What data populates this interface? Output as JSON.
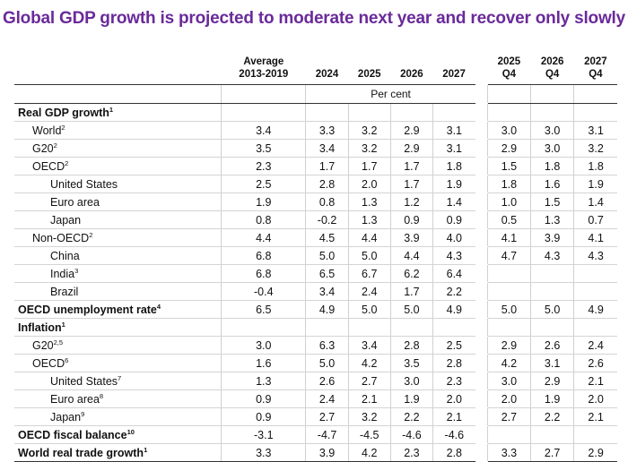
{
  "title": "Global GDP growth is projected to moderate next year and recover only slowly",
  "headers": {
    "avg_line1": "Average",
    "avg_line2": "2013-2019",
    "y2024": "2024",
    "y2025": "2025",
    "y2026": "2026",
    "y2027": "2027",
    "q2025_line1": "2025",
    "q2025_line2": "Q4",
    "q2026_line1": "2026",
    "q2026_line2": "Q4",
    "q2027_line1": "2027",
    "q2027_line2": "Q4",
    "unit": "Per cent"
  },
  "rows": [
    {
      "label": "Real GDP growth",
      "sup": "1",
      "values": [
        "",
        "",
        "",
        "",
        "",
        "",
        "",
        ""
      ]
    },
    {
      "label": "World",
      "sup": "2",
      "values": [
        "3.4",
        "3.3",
        "3.2",
        "2.9",
        "3.1",
        "3.0",
        "3.0",
        "3.1"
      ]
    },
    {
      "label": "G20",
      "sup": "2",
      "values": [
        "3.5",
        "3.4",
        "3.2",
        "2.9",
        "3.1",
        "2.9",
        "3.0",
        "3.2"
      ]
    },
    {
      "label": "OECD",
      "sup": "2",
      "values": [
        "2.3",
        "1.7",
        "1.7",
        "1.7",
        "1.8",
        "1.5",
        "1.8",
        "1.8"
      ]
    },
    {
      "label": "United States",
      "sup": "",
      "values": [
        "2.5",
        "2.8",
        "2.0",
        "1.7",
        "1.9",
        "1.8",
        "1.6",
        "1.9"
      ]
    },
    {
      "label": "Euro area",
      "sup": "",
      "values": [
        "1.9",
        "0.8",
        "1.3",
        "1.2",
        "1.4",
        "1.0",
        "1.5",
        "1.4"
      ]
    },
    {
      "label": "Japan",
      "sup": "",
      "values": [
        "0.8",
        "-0.2",
        "1.3",
        "0.9",
        "0.9",
        "0.5",
        "1.3",
        "0.7"
      ]
    },
    {
      "label": "Non-OECD",
      "sup": "2",
      "values": [
        "4.4",
        "4.5",
        "4.4",
        "3.9",
        "4.0",
        "4.1",
        "3.9",
        "4.1"
      ]
    },
    {
      "label": "China",
      "sup": "",
      "values": [
        "6.8",
        "5.0",
        "5.0",
        "4.4",
        "4.3",
        "4.7",
        "4.3",
        "4.3"
      ]
    },
    {
      "label": "India",
      "sup": "3",
      "values": [
        "6.8",
        "6.5",
        "6.7",
        "6.2",
        "6.4",
        "",
        "",
        ""
      ]
    },
    {
      "label": "Brazil",
      "sup": "",
      "values": [
        "-0.4",
        "3.4",
        "2.4",
        "1.7",
        "2.2",
        "",
        "",
        ""
      ]
    },
    {
      "label": "OECD unemployment rate",
      "sup": "4",
      "values": [
        "6.5",
        "4.9",
        "5.0",
        "5.0",
        "4.9",
        "5.0",
        "5.0",
        "4.9"
      ]
    },
    {
      "label": "Inflation",
      "sup": "1",
      "values": [
        "",
        "",
        "",
        "",
        "",
        "",
        "",
        ""
      ]
    },
    {
      "label": "G20",
      "sup": "2,5",
      "values": [
        "3.0",
        "6.3",
        "3.4",
        "2.8",
        "2.5",
        "2.9",
        "2.6",
        "2.4"
      ]
    },
    {
      "label": "OECD",
      "sup": "6",
      "values": [
        "1.6",
        "5.0",
        "4.2",
        "3.5",
        "2.8",
        "4.2",
        "3.1",
        "2.6"
      ]
    },
    {
      "label": "United States",
      "sup": "7",
      "values": [
        "1.3",
        "2.6",
        "2.7",
        "3.0",
        "2.3",
        "3.0",
        "2.9",
        "2.1"
      ]
    },
    {
      "label": "Euro area",
      "sup": "8",
      "values": [
        "0.9",
        "2.4",
        "2.1",
        "1.9",
        "2.0",
        "2.0",
        "1.9",
        "2.0"
      ]
    },
    {
      "label": "Japan",
      "sup": "9",
      "values": [
        "0.9",
        "2.7",
        "3.2",
        "2.2",
        "2.1",
        "2.7",
        "2.2",
        "2.1"
      ]
    },
    {
      "label": "OECD fiscal balance",
      "sup": "10",
      "values": [
        "-3.1",
        "-4.7",
        "-4.5",
        "-4.6",
        "-4.6",
        "",
        "",
        ""
      ]
    },
    {
      "label": "World real trade growth",
      "sup": "1",
      "values": [
        "3.3",
        "3.9",
        "4.2",
        "2.3",
        "2.8",
        "3.3",
        "2.7",
        "2.9"
      ]
    }
  ]
}
